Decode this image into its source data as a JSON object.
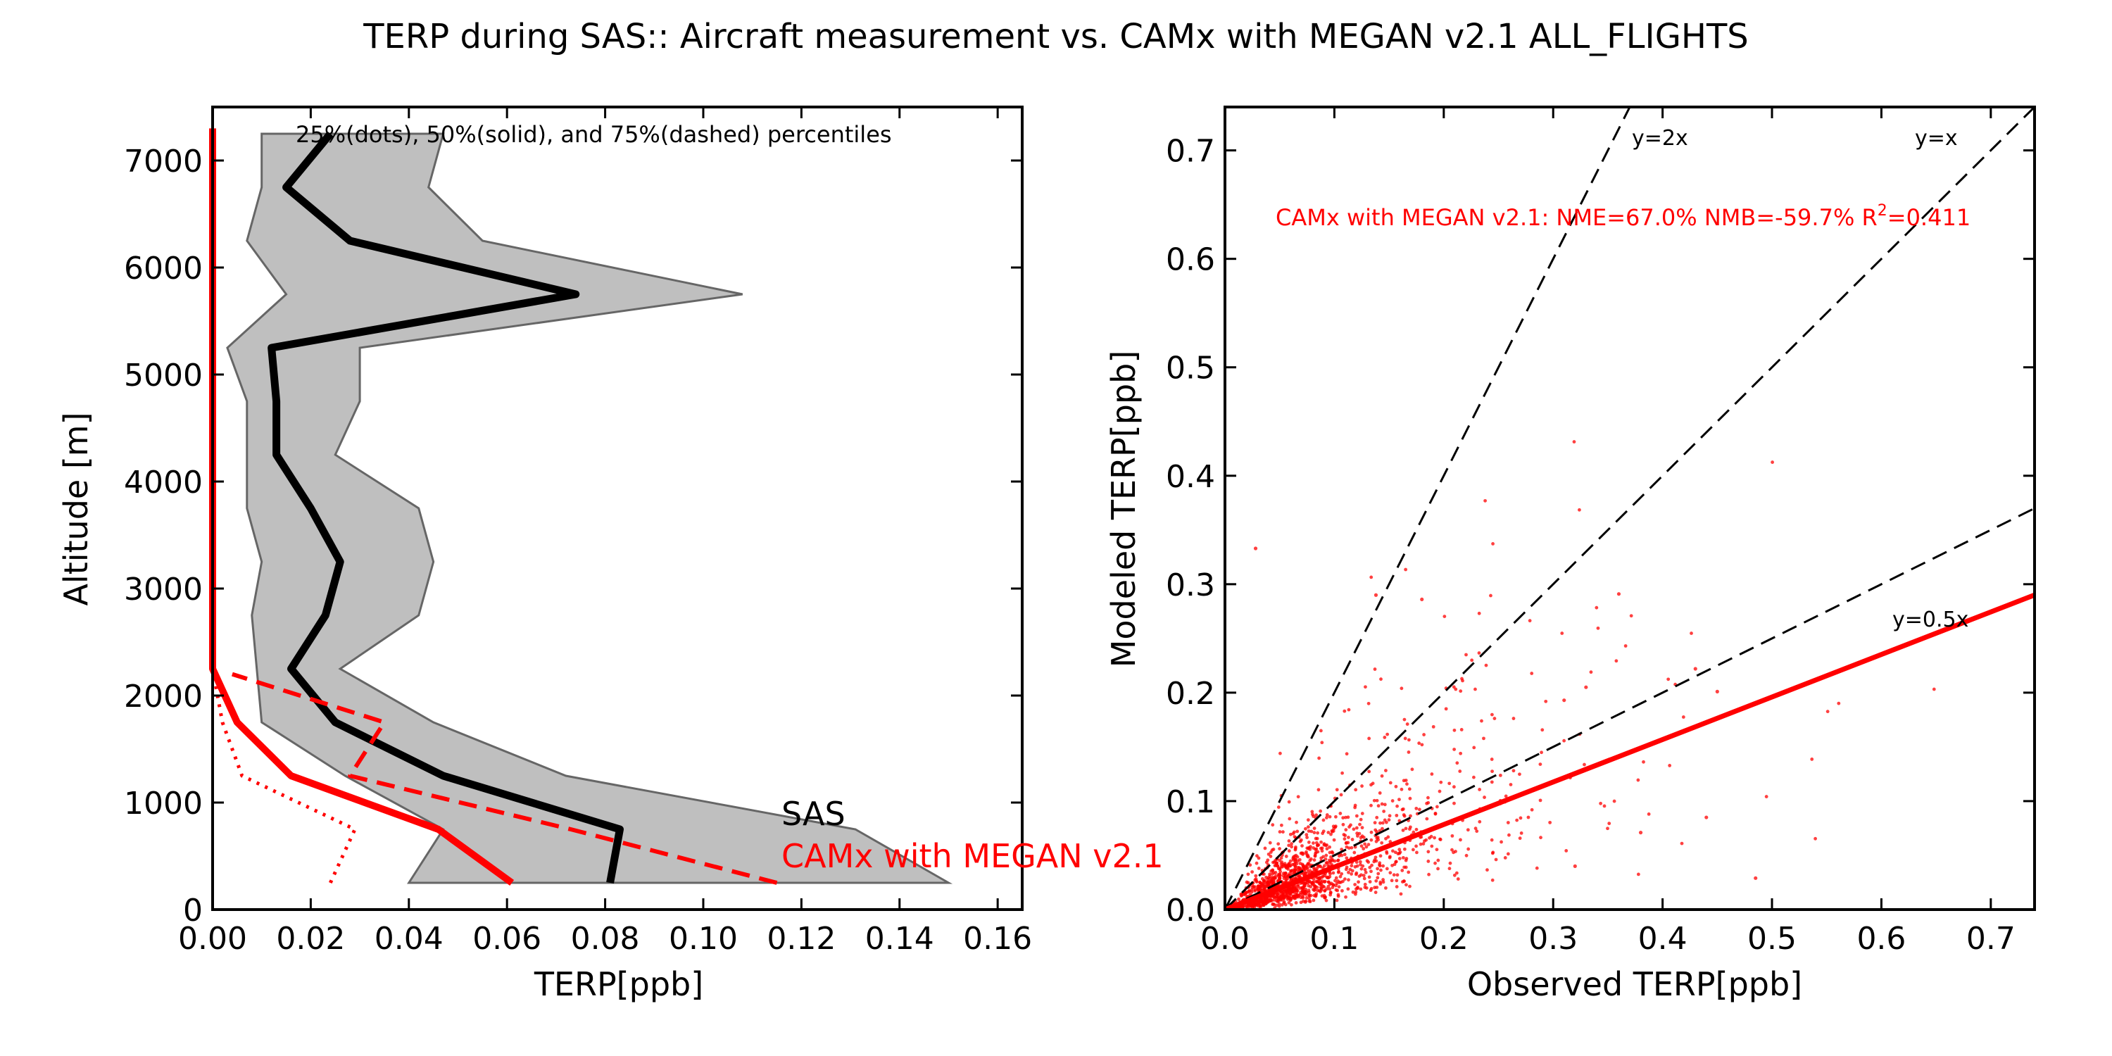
{
  "figure": {
    "title": "TERP during SAS:: Aircraft measurement vs. CAMx with MEGAN v2.1 ALL_FLIGHTS"
  },
  "colors": {
    "model": "#ff0000",
    "observed": "#000000",
    "band": "#bfbfbf",
    "band_edge": "#666666"
  },
  "chart_data": [
    {
      "type": "line",
      "panel": "profile",
      "xlabel": "TERP[ppb]",
      "ylabel": "Altitude [m]",
      "xlim": [
        0,
        0.165
      ],
      "ylim": [
        0,
        7500
      ],
      "xticks": [
        "0.00",
        "0.02",
        "0.04",
        "0.06",
        "0.08",
        "0.10",
        "0.12",
        "0.14",
        "0.16"
      ],
      "yticks": [
        "0",
        "1000",
        "2000",
        "3000",
        "4000",
        "5000",
        "6000",
        "7000"
      ],
      "annotation": "25%(dots), 50%(solid), and 75%(dashed) percentiles",
      "legend_placement": "lower right",
      "legend": [
        "SAS",
        "CAMx with MEGAN v2.1"
      ],
      "altitudes": [
        250,
        750,
        1250,
        1750,
        2250,
        2750,
        3250,
        3750,
        4250,
        4750,
        5250,
        5750,
        6250,
        6750,
        7250
      ],
      "observed_p25": [
        0.04,
        0.047,
        0.027,
        0.01,
        0.009,
        0.008,
        0.01,
        0.007,
        0.007,
        0.007,
        0.003,
        0.015,
        0.007,
        0.01,
        0.01
      ],
      "observed_p75": [
        0.15,
        0.131,
        0.072,
        0.045,
        0.026,
        0.042,
        0.045,
        0.042,
        0.025,
        0.03,
        0.03,
        0.108,
        0.055,
        0.044,
        0.047
      ],
      "series": [
        {
          "name": "SAS",
          "percentile": "50",
          "x": [
            0.081,
            0.083,
            0.047,
            0.025,
            0.016,
            0.023,
            0.026,
            0.02,
            0.013,
            0.013,
            0.012,
            0.074,
            0.028,
            0.015,
            0.024
          ],
          "y": [
            250,
            750,
            1250,
            1750,
            2250,
            2750,
            3250,
            3750,
            4250,
            4750,
            5250,
            5750,
            6250,
            6750,
            7250
          ]
        },
        {
          "name": "CAMx with MEGAN v2.1",
          "percentile": "50",
          "x": [
            0.061,
            0.046,
            0.016,
            0.005,
            0.0,
            0.0,
            0.0,
            0.0,
            0.0,
            0.0,
            0.0,
            0.0,
            0.0,
            0.0,
            0.0
          ],
          "y": [
            250,
            750,
            1250,
            1750,
            2250,
            2750,
            3250,
            3750,
            4250,
            4750,
            5250,
            5750,
            6250,
            6750,
            7300
          ]
        },
        {
          "percentile": "75",
          "x": [
            0.115,
            0.073,
            0.028,
            0.035,
            0.004
          ],
          "y": [
            250,
            750,
            1250,
            1750,
            2200
          ]
        },
        {
          "percentile": "25",
          "x": [
            0.024,
            0.029,
            0.006,
            0.002,
            0.0
          ],
          "y": [
            250,
            750,
            1250,
            1750,
            2250
          ]
        }
      ]
    },
    {
      "type": "scatter",
      "panel": "scatter",
      "xlabel": "Observed TERP[ppb]",
      "ylabel": "Modeled TERP[ppb]",
      "xlim": [
        0,
        0.74
      ],
      "ylim": [
        0,
        0.74
      ],
      "xticks": [
        "0.0",
        "0.1",
        "0.2",
        "0.3",
        "0.4",
        "0.5",
        "0.6",
        "0.7"
      ],
      "yticks": [
        "0.0",
        "0.1",
        "0.2",
        "0.3",
        "0.4",
        "0.5",
        "0.6",
        "0.7"
      ],
      "stats_label": "CAMx with MEGAN v2.1: NME=67.0% NMB=-59.7% R",
      "stats_sup": "2",
      "stats_tail": "=0.411",
      "reference_lines": [
        {
          "label": "y=2x",
          "slope": 2
        },
        {
          "label": "y=x",
          "slope": 1
        },
        {
          "label": "y=0.5x",
          "slope": 0.5
        }
      ],
      "fit_line": {
        "slope": 0.392,
        "intercept": 0.0
      },
      "point_cloud": {
        "count": 1500,
        "median_x": 0.07,
        "typical_ratio": 0.4
      },
      "notable_points": [
        {
          "x": 0.028,
          "y": 0.333
        },
        {
          "x": 0.138,
          "y": 0.29
        },
        {
          "x": 0.18,
          "y": 0.286
        },
        {
          "x": 0.36,
          "y": 0.291
        },
        {
          "x": 0.44,
          "y": 0.085
        },
        {
          "x": 0.485,
          "y": 0.029
        },
        {
          "x": 0.43,
          "y": 0.222
        },
        {
          "x": 0.45,
          "y": 0.201
        },
        {
          "x": 0.33,
          "y": 0.205
        },
        {
          "x": 0.31,
          "y": 0.193
        },
        {
          "x": 0.38,
          "y": 0.071
        },
        {
          "x": 0.32,
          "y": 0.04
        }
      ]
    }
  ]
}
